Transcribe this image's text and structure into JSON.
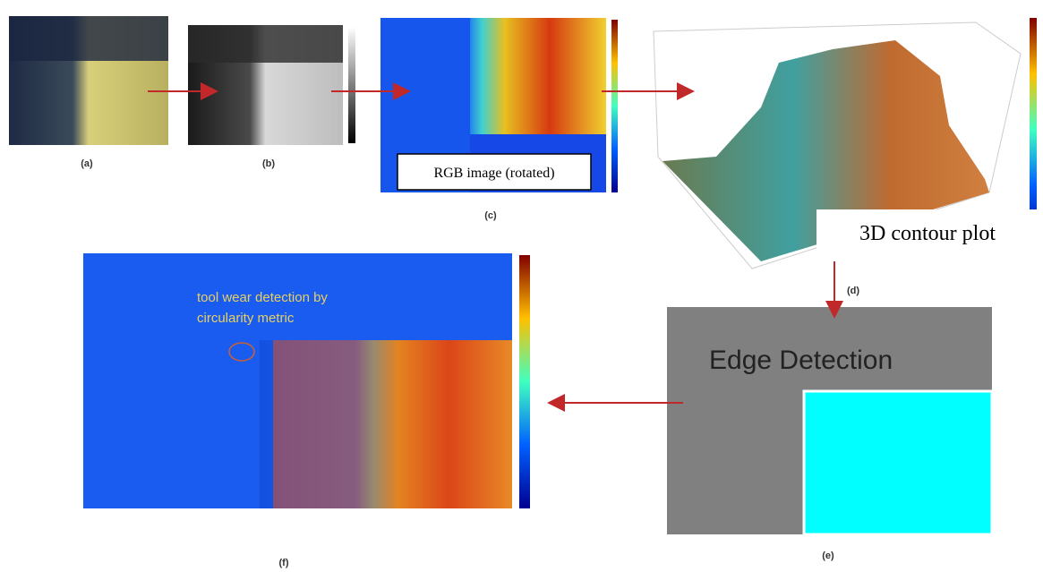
{
  "panels": [
    {
      "label": "(a)"
    },
    {
      "label": "(b)"
    },
    {
      "label": "(c)",
      "caption": "RGB image (rotated)"
    },
    {
      "label": "(d)",
      "caption": "3D contour plot"
    },
    {
      "label": "(e)",
      "caption": "Edge Detection"
    },
    {
      "label": "(f)",
      "annotation": [
        "tool wear detection by",
        "circularity metric"
      ]
    }
  ]
}
